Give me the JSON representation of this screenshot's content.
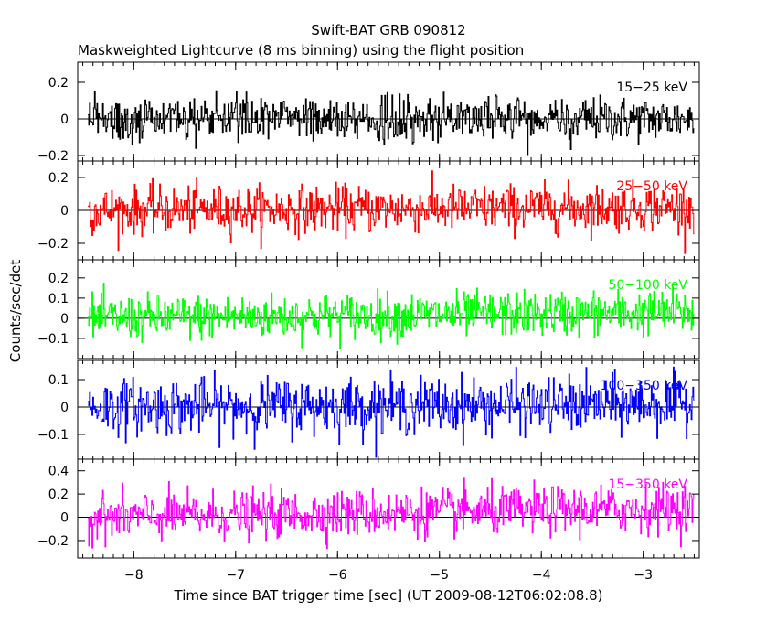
{
  "chart_data": {
    "type": "line",
    "title": "Swift-BAT GRB 090812",
    "subtitle": "Maskweighted Lightcurve (8 ms binning) using the flight position",
    "xlabel": "Time since BAT trigger time [sec] (UT 2009-08-12T06:02:08.8)",
    "ylabel": "Counts/sec/det",
    "xlim": [
      -8.55,
      -2.45
    ],
    "x_start": -8.45,
    "x_end": -2.5,
    "bin_width": 0.008,
    "xticks": [
      "−8",
      "−7",
      "−6",
      "−5",
      "−4",
      "−3"
    ],
    "grid": false,
    "panels": [
      {
        "name": "15−25 keV",
        "color": "#000000",
        "ylim": [
          -0.23,
          0.31
        ],
        "yticks": [
          "−0.2",
          "0",
          "0.2"
        ],
        "ytick_values": [
          -0.2,
          0,
          0.2
        ],
        "noise_sigma": 0.06,
        "trend": [
          0.0,
          0.0
        ]
      },
      {
        "name": "25−50 keV",
        "color": "#ff0000",
        "ylim": [
          -0.3,
          0.3
        ],
        "yticks": [
          "−0.2",
          "0",
          "0.2"
        ],
        "ytick_values": [
          -0.2,
          0,
          0.2
        ],
        "noise_sigma": 0.07,
        "trend": [
          0.0,
          0.02
        ]
      },
      {
        "name": "50−100 keV",
        "color": "#00ff00",
        "ylim": [
          -0.2,
          0.29
        ],
        "yticks": [
          "−0.1",
          "0",
          "0.1",
          "0.2"
        ],
        "ytick_values": [
          -0.1,
          0,
          0.1,
          0.2
        ],
        "noise_sigma": 0.055,
        "trend": [
          0.0,
          0.03
        ]
      },
      {
        "name": "100−350 keV",
        "color": "#0000ff",
        "ylim": [
          -0.19,
          0.17
        ],
        "yticks": [
          "−0.1",
          "0",
          "0.1"
        ],
        "ytick_values": [
          -0.1,
          0,
          0.1
        ],
        "noise_sigma": 0.05,
        "trend": [
          0.0,
          0.01
        ]
      },
      {
        "name": "15−350 keV",
        "color": "#ff00ff",
        "ylim": [
          -0.35,
          0.5
        ],
        "yticks": [
          "−0.2",
          "0",
          "0.2",
          "0.4"
        ],
        "ytick_values": [
          -0.2,
          0,
          0.2,
          0.4
        ],
        "noise_sigma": 0.1,
        "trend": [
          0.0,
          0.08
        ]
      }
    ]
  }
}
